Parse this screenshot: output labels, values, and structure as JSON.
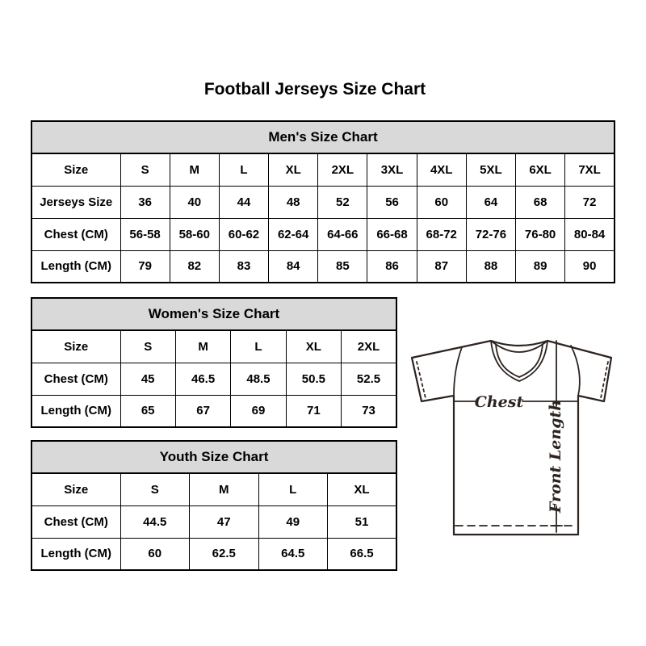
{
  "page": {
    "title": "Football Jerseys Size Chart"
  },
  "colors": {
    "table_header_bg": "#d9d9d9",
    "table_border": "#000000",
    "diagram_line": "#2d2420",
    "background": "#ffffff"
  },
  "diagram": {
    "chest_label": "Chest",
    "front_length_label": "Front Length"
  },
  "chart_data": [
    {
      "type": "table",
      "title": "Men's Size Chart",
      "rows": [
        {
          "label": "Size",
          "values": [
            "S",
            "M",
            "L",
            "XL",
            "2XL",
            "3XL",
            "4XL",
            "5XL",
            "6XL",
            "7XL"
          ]
        },
        {
          "label": "Jerseys Size",
          "values": [
            "36",
            "40",
            "44",
            "48",
            "52",
            "56",
            "60",
            "64",
            "68",
            "72"
          ]
        },
        {
          "label": "Chest (CM)",
          "values": [
            "56-58",
            "58-60",
            "60-62",
            "62-64",
            "64-66",
            "66-68",
            "68-72",
            "72-76",
            "76-80",
            "80-84"
          ]
        },
        {
          "label": "Length (CM)",
          "values": [
            "79",
            "82",
            "83",
            "84",
            "85",
            "86",
            "87",
            "88",
            "89",
            "90"
          ]
        }
      ]
    },
    {
      "type": "table",
      "title": "Women's Size Chart",
      "rows": [
        {
          "label": "Size",
          "values": [
            "S",
            "M",
            "L",
            "XL",
            "2XL"
          ]
        },
        {
          "label": "Chest (CM)",
          "values": [
            "45",
            "46.5",
            "48.5",
            "50.5",
            "52.5"
          ]
        },
        {
          "label": "Length (CM)",
          "values": [
            "65",
            "67",
            "69",
            "71",
            "73"
          ]
        }
      ]
    },
    {
      "type": "table",
      "title": "Youth Size Chart",
      "rows": [
        {
          "label": "Size",
          "values": [
            "S",
            "M",
            "L",
            "XL"
          ]
        },
        {
          "label": "Chest (CM)",
          "values": [
            "44.5",
            "47",
            "49",
            "51"
          ]
        },
        {
          "label": "Length (CM)",
          "values": [
            "60",
            "62.5",
            "64.5",
            "66.5"
          ]
        }
      ]
    }
  ]
}
